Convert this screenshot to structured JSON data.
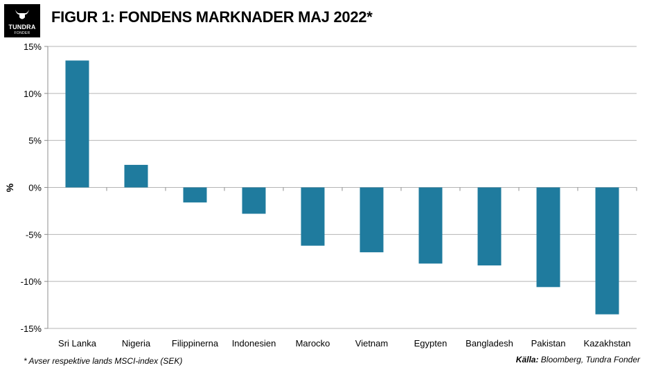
{
  "header": {
    "title": "FIGUR 1: FONDENS MARKNADER MAJ 2022*",
    "logo_text": "TUNDRA",
    "logo_subtext": "FONDER"
  },
  "footer": {
    "footnote": "* Avser respektive lands MSCI-index (SEK)",
    "source_label": "Källa:",
    "source_text": " Bloomberg, Tundra Fonder"
  },
  "chart_data": {
    "type": "bar",
    "title": "FIGUR 1: FONDENS MARKNADER MAJ 2022*",
    "xlabel": "",
    "ylabel": "%",
    "ylim": [
      -15,
      15
    ],
    "yticks": [
      15,
      10,
      5,
      0,
      -5,
      -10,
      -15
    ],
    "ytick_labels": [
      "15%",
      "10%",
      "5%",
      "0%",
      "-5%",
      "-10%",
      "-15%"
    ],
    "grid": true,
    "legend": "none",
    "bar_color": "#1f7b9e",
    "categories": [
      "Sri Lanka",
      "Nigeria",
      "Filippinerna",
      "Indonesien",
      "Marocko",
      "Vietnam",
      "Egypten",
      "Bangladesh",
      "Pakistan",
      "Kazakhstan"
    ],
    "values": [
      13.5,
      2.4,
      -1.6,
      -2.8,
      -6.2,
      -6.9,
      -8.1,
      -8.3,
      -10.6,
      -13.5
    ]
  }
}
